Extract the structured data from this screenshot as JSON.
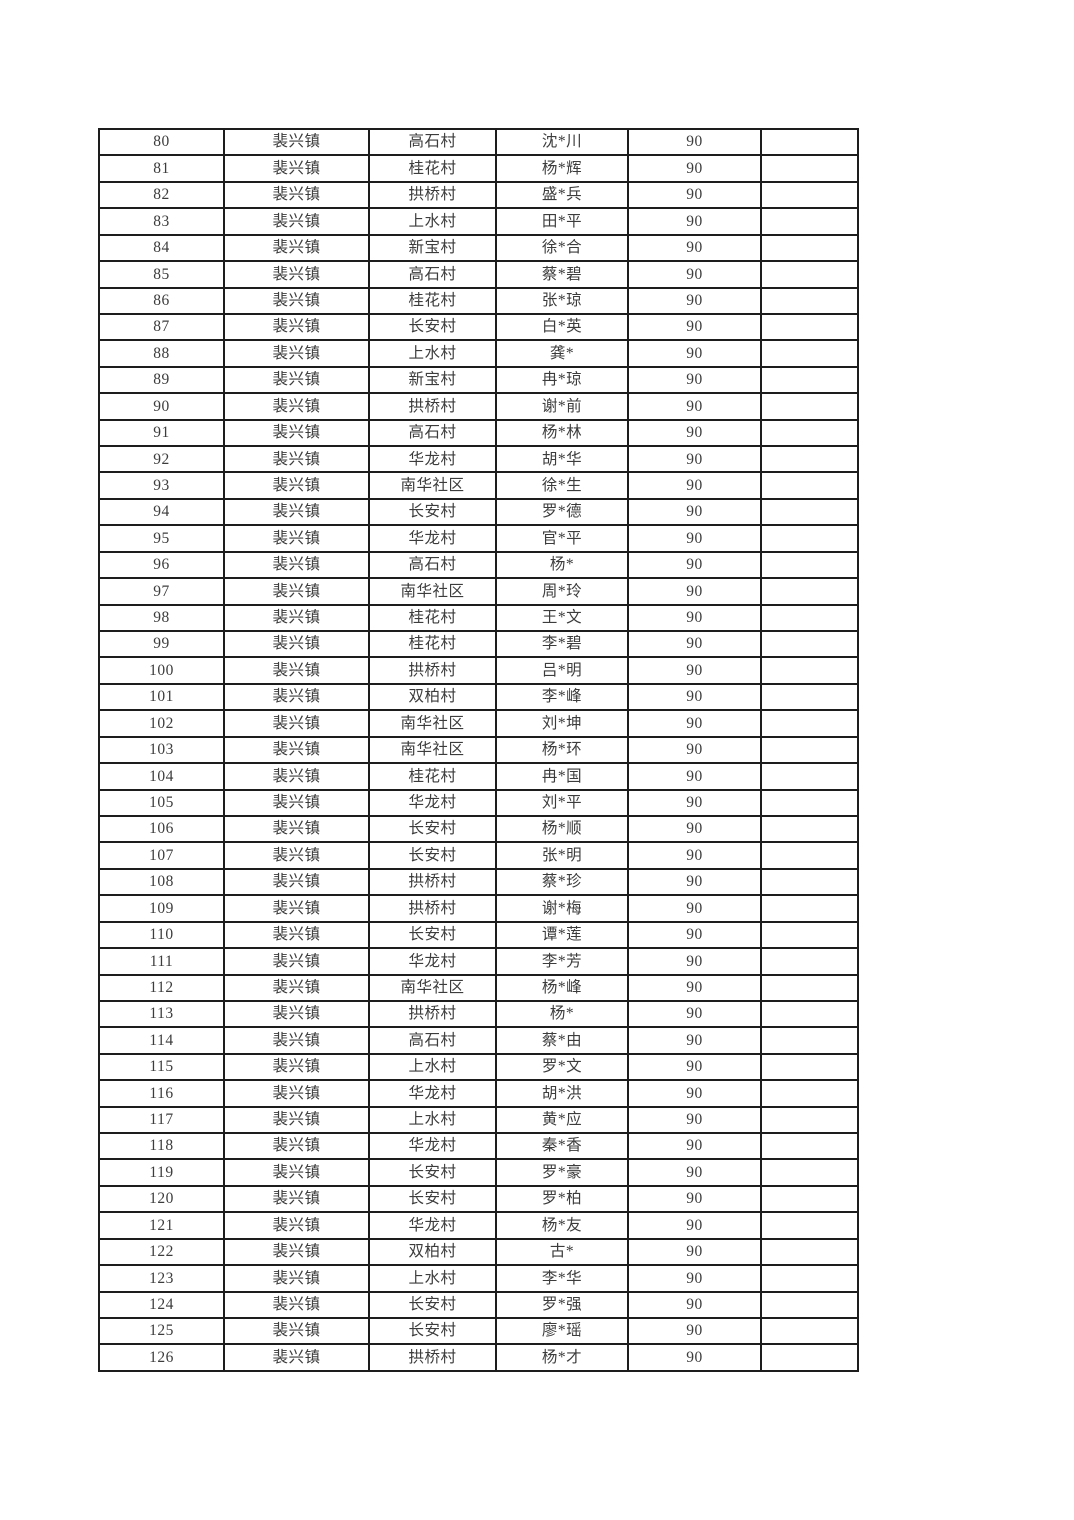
{
  "page": {
    "background_color": "#ffffff",
    "border_color": "#1d1d1d",
    "text_color": "#3c3c3c"
  },
  "table": {
    "fields": [
      "index",
      "town",
      "village",
      "name",
      "score",
      "blank"
    ],
    "rows": [
      [
        "80",
        "裴兴镇",
        "高石村",
        "沈*川",
        "90",
        ""
      ],
      [
        "81",
        "裴兴镇",
        "桂花村",
        "杨*辉",
        "90",
        ""
      ],
      [
        "82",
        "裴兴镇",
        "拱桥村",
        "盛*兵",
        "90",
        ""
      ],
      [
        "83",
        "裴兴镇",
        "上水村",
        "田*平",
        "90",
        ""
      ],
      [
        "84",
        "裴兴镇",
        "新宝村",
        "徐*合",
        "90",
        ""
      ],
      [
        "85",
        "裴兴镇",
        "高石村",
        "蔡*碧",
        "90",
        ""
      ],
      [
        "86",
        "裴兴镇",
        "桂花村",
        "张*琼",
        "90",
        ""
      ],
      [
        "87",
        "裴兴镇",
        "长安村",
        "白*英",
        "90",
        ""
      ],
      [
        "88",
        "裴兴镇",
        "上水村",
        "龚*",
        "90",
        ""
      ],
      [
        "89",
        "裴兴镇",
        "新宝村",
        "冉*琼",
        "90",
        ""
      ],
      [
        "90",
        "裴兴镇",
        "拱桥村",
        "谢*前",
        "90",
        ""
      ],
      [
        "91",
        "裴兴镇",
        "高石村",
        "杨*林",
        "90",
        ""
      ],
      [
        "92",
        "裴兴镇",
        "华龙村",
        "胡*华",
        "90",
        ""
      ],
      [
        "93",
        "裴兴镇",
        "南华社区",
        "徐*生",
        "90",
        ""
      ],
      [
        "94",
        "裴兴镇",
        "长安村",
        "罗*德",
        "90",
        ""
      ],
      [
        "95",
        "裴兴镇",
        "华龙村",
        "官*平",
        "90",
        ""
      ],
      [
        "96",
        "裴兴镇",
        "高石村",
        "杨*",
        "90",
        ""
      ],
      [
        "97",
        "裴兴镇",
        "南华社区",
        "周*玲",
        "90",
        ""
      ],
      [
        "98",
        "裴兴镇",
        "桂花村",
        "王*文",
        "90",
        ""
      ],
      [
        "99",
        "裴兴镇",
        "桂花村",
        "李*碧",
        "90",
        ""
      ],
      [
        "100",
        "裴兴镇",
        "拱桥村",
        "吕*明",
        "90",
        ""
      ],
      [
        "101",
        "裴兴镇",
        "双柏村",
        "李*峰",
        "90",
        ""
      ],
      [
        "102",
        "裴兴镇",
        "南华社区",
        "刘*坤",
        "90",
        ""
      ],
      [
        "103",
        "裴兴镇",
        "南华社区",
        "杨*环",
        "90",
        ""
      ],
      [
        "104",
        "裴兴镇",
        "桂花村",
        "冉*国",
        "90",
        ""
      ],
      [
        "105",
        "裴兴镇",
        "华龙村",
        "刘*平",
        "90",
        ""
      ],
      [
        "106",
        "裴兴镇",
        "长安村",
        "杨*顺",
        "90",
        ""
      ],
      [
        "107",
        "裴兴镇",
        "长安村",
        "张*明",
        "90",
        ""
      ],
      [
        "108",
        "裴兴镇",
        "拱桥村",
        "蔡*珍",
        "90",
        ""
      ],
      [
        "109",
        "裴兴镇",
        "拱桥村",
        "谢*梅",
        "90",
        ""
      ],
      [
        "110",
        "裴兴镇",
        "长安村",
        "谭*莲",
        "90",
        ""
      ],
      [
        "111",
        "裴兴镇",
        "华龙村",
        "李*芳",
        "90",
        ""
      ],
      [
        "112",
        "裴兴镇",
        "南华社区",
        "杨*峰",
        "90",
        ""
      ],
      [
        "113",
        "裴兴镇",
        "拱桥村",
        "杨*",
        "90",
        ""
      ],
      [
        "114",
        "裴兴镇",
        "高石村",
        "蔡*由",
        "90",
        ""
      ],
      [
        "115",
        "裴兴镇",
        "上水村",
        "罗*文",
        "90",
        ""
      ],
      [
        "116",
        "裴兴镇",
        "华龙村",
        "胡*洪",
        "90",
        ""
      ],
      [
        "117",
        "裴兴镇",
        "上水村",
        "黄*应",
        "90",
        ""
      ],
      [
        "118",
        "裴兴镇",
        "华龙村",
        "秦*香",
        "90",
        ""
      ],
      [
        "119",
        "裴兴镇",
        "长安村",
        "罗*豪",
        "90",
        ""
      ],
      [
        "120",
        "裴兴镇",
        "长安村",
        "罗*柏",
        "90",
        ""
      ],
      [
        "121",
        "裴兴镇",
        "华龙村",
        "杨*友",
        "90",
        ""
      ],
      [
        "122",
        "裴兴镇",
        "双柏村",
        "古*",
        "90",
        ""
      ],
      [
        "123",
        "裴兴镇",
        "上水村",
        "李*华",
        "90",
        ""
      ],
      [
        "124",
        "裴兴镇",
        "长安村",
        "罗*强",
        "90",
        ""
      ],
      [
        "125",
        "裴兴镇",
        "长安村",
        "廖*瑶",
        "90",
        ""
      ],
      [
        "126",
        "裴兴镇",
        "拱桥村",
        "杨*才",
        "90",
        ""
      ]
    ]
  }
}
